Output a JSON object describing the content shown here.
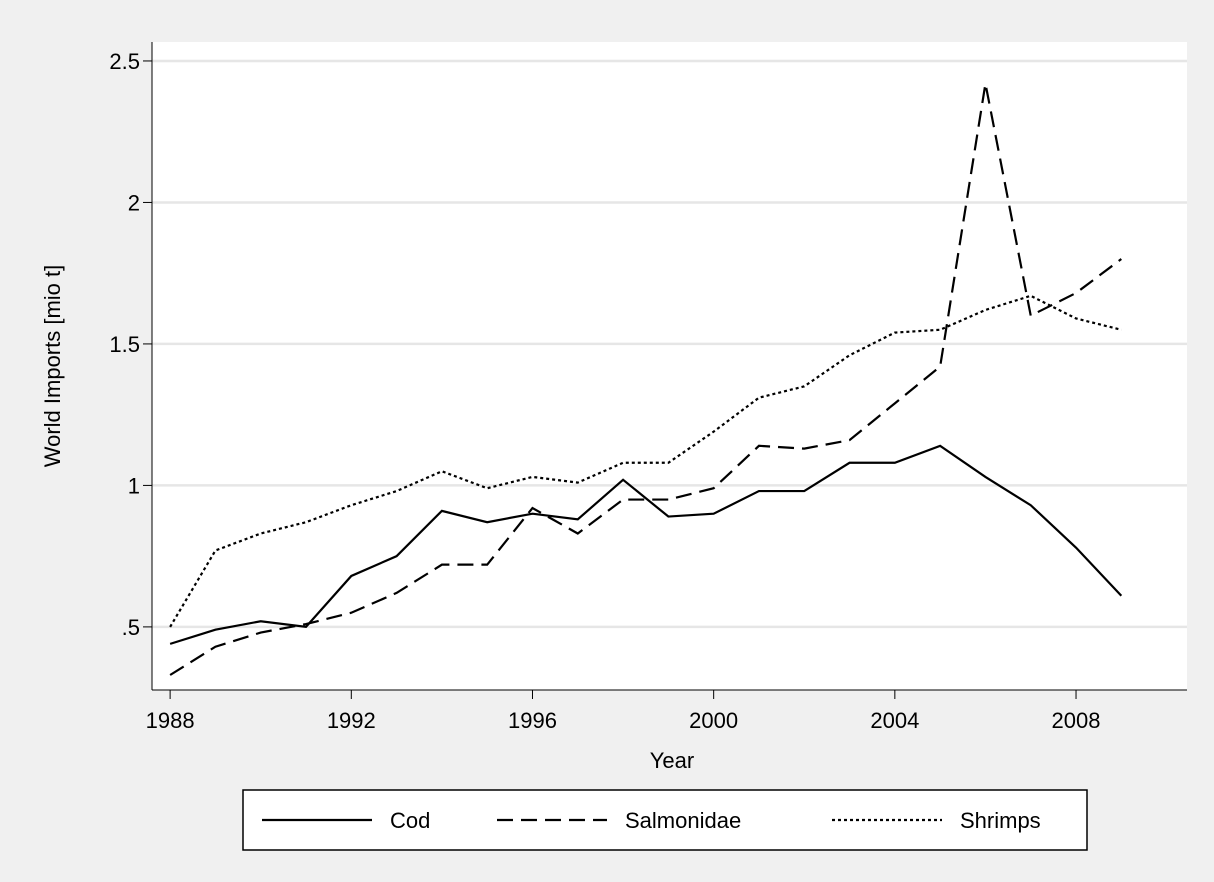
{
  "chart_data": {
    "type": "line",
    "x": [
      1988,
      1989,
      1990,
      1991,
      1992,
      1993,
      1994,
      1995,
      1996,
      1997,
      1998,
      1999,
      2000,
      2001,
      2002,
      2003,
      2004,
      2005,
      2006,
      2007,
      2008,
      2009
    ],
    "series": [
      {
        "name": "Cod",
        "color": "#000000",
        "style": "solid",
        "values": [
          0.44,
          0.49,
          0.52,
          0.5,
          0.68,
          0.75,
          0.91,
          0.87,
          0.9,
          0.88,
          1.02,
          0.89,
          0.9,
          0.98,
          0.98,
          1.08,
          1.08,
          1.14,
          1.03,
          0.93,
          0.78,
          0.61
        ]
      },
      {
        "name": "Salmonidae",
        "color": "#000000",
        "style": "dashed",
        "values": [
          0.33,
          0.43,
          0.48,
          0.51,
          0.55,
          0.62,
          0.72,
          0.72,
          0.92,
          0.83,
          0.95,
          0.95,
          0.99,
          1.14,
          1.13,
          1.16,
          1.29,
          1.42,
          2.42,
          1.6,
          1.68,
          1.8
        ]
      },
      {
        "name": "Shrimps",
        "color": "#000000",
        "style": "dotted",
        "values": [
          0.5,
          0.77,
          0.83,
          0.87,
          0.93,
          0.98,
          1.05,
          0.99,
          1.03,
          1.01,
          1.08,
          1.08,
          1.19,
          1.31,
          1.35,
          1.46,
          1.54,
          1.55,
          1.62,
          1.67,
          1.59,
          1.55
        ]
      }
    ],
    "x_label": "Year",
    "y_label": "World Imports [mio t]",
    "xlim": [
      1987.6,
      2010.45
    ],
    "xticks": [
      1988,
      1992,
      1996,
      2000,
      2004,
      2008
    ],
    "ylim": [
      0.277,
      2.567
    ],
    "yticks": [
      {
        "value": 0.5,
        "label": ".5"
      },
      1,
      1.5,
      2,
      2.5
    ],
    "grid": true,
    "legend": "bottom"
  }
}
